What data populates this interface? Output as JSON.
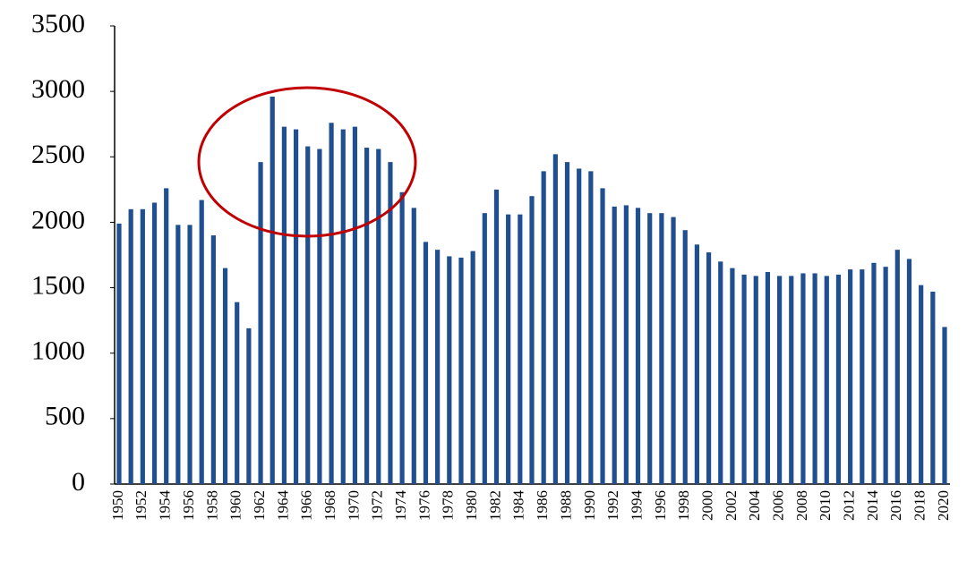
{
  "chart_data": {
    "type": "bar",
    "categories": [
      "1950",
      null,
      "1952",
      null,
      "1954",
      null,
      "1956",
      null,
      "1958",
      null,
      "1960",
      null,
      "1962",
      null,
      "1964",
      null,
      "1966",
      null,
      "1968",
      null,
      "1970",
      null,
      "1972",
      null,
      "1974",
      null,
      "1976",
      null,
      "1978",
      null,
      "1980",
      null,
      "1982",
      null,
      "1984",
      null,
      "1986",
      null,
      "1988",
      null,
      "1990",
      null,
      "1992",
      null,
      "1994",
      null,
      "1996",
      null,
      "1998",
      null,
      "2000",
      null,
      "2002",
      null,
      "2004",
      null,
      "2006",
      null,
      "2008",
      null,
      "2010",
      null,
      "2012",
      null,
      "2014",
      null,
      "2016",
      null,
      "2018",
      null,
      "2020"
    ],
    "values": [
      1990,
      2100,
      2100,
      2150,
      2260,
      1980,
      1980,
      2170,
      1900,
      1650,
      1390,
      1190,
      2460,
      2960,
      2730,
      2710,
      2580,
      2560,
      2760,
      2710,
      2730,
      2570,
      2560,
      2460,
      2230,
      2110,
      1850,
      1790,
      1740,
      1730,
      1780,
      2070,
      2250,
      2060,
      2060,
      2200,
      2390,
      2520,
      2460,
      2410,
      2390,
      2260,
      2120,
      2130,
      2110,
      2070,
      2070,
      2040,
      1940,
      1830,
      1770,
      1700,
      1650,
      1600,
      1590,
      1620,
      1590,
      1590,
      1610,
      1610,
      1590,
      1600,
      1640,
      1640,
      1690,
      1660,
      1790,
      1720,
      1520,
      1470,
      1200
    ],
    "color": "#1f4f91",
    "ylim": [
      0,
      3500
    ],
    "yticks": [
      0,
      500,
      1000,
      1500,
      2000,
      2500,
      3000,
      3500
    ],
    "grid": false
  }
}
